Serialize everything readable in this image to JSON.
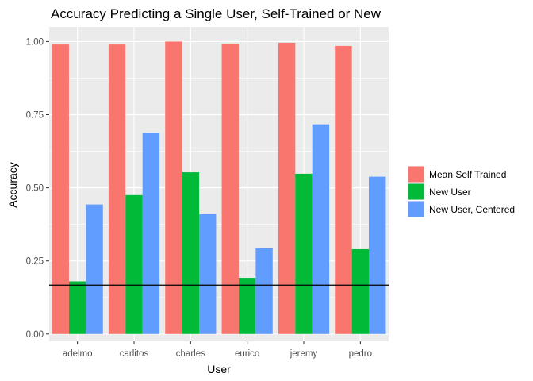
{
  "chart_data": {
    "type": "bar",
    "title": "Accuracy Predicting a Single User, Self-Trained or New",
    "xlabel": "User",
    "ylabel": "Accuracy",
    "ylim": [
      -0.025,
      1.05
    ],
    "yticks": [
      "0.00",
      "0.25",
      "0.50",
      "0.75",
      "1.00"
    ],
    "categories": [
      "adelmo",
      "carlitos",
      "charles",
      "eurico",
      "jeremy",
      "pedro"
    ],
    "series": [
      {
        "name": "Mean Self Trained",
        "color": "#F8766D",
        "values": [
          0.99,
          0.99,
          1.0,
          0.993,
          0.996,
          0.985
        ]
      },
      {
        "name": "New User",
        "color": "#00BA38",
        "values": [
          0.18,
          0.475,
          0.553,
          0.192,
          0.548,
          0.29
        ]
      },
      {
        "name": "New User, Centered",
        "color": "#619CFF",
        "values": [
          0.443,
          0.687,
          0.41,
          0.293,
          0.717,
          0.538
        ]
      }
    ],
    "hline": 0.167,
    "grid": true,
    "legend_position": "right"
  }
}
